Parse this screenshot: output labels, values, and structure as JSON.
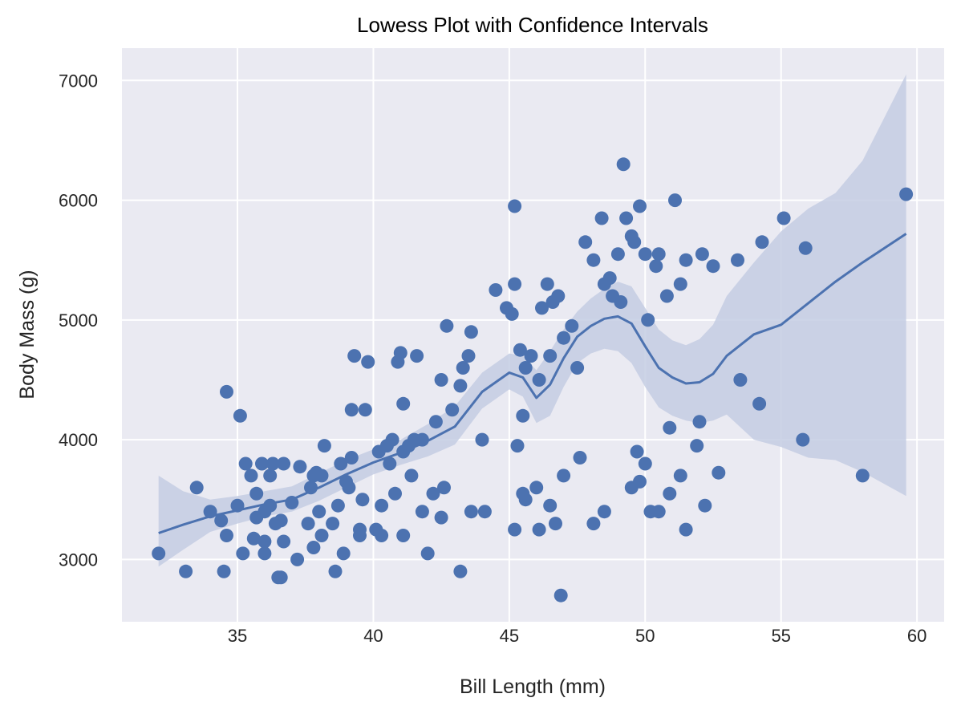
{
  "chart_data": {
    "type": "scatter",
    "title": "Lowess Plot with Confidence Intervals",
    "xlabel": "Bill Length (mm)",
    "ylabel": "Body Mass (g)",
    "xlim": [
      30.75,
      61.0
    ],
    "ylim": [
      2480,
      7270
    ],
    "xticks": [
      35,
      40,
      45,
      50,
      55,
      60
    ],
    "yticks": [
      3000,
      4000,
      5000,
      6000,
      7000
    ],
    "grid": true,
    "colors": {
      "background": "#eaeaf2",
      "grid": "#ffffff",
      "points": "#4c72b0",
      "line": "#4c72b0",
      "band": "#c4cde3"
    },
    "points": [
      [
        32.1,
        3050
      ],
      [
        33.1,
        2900
      ],
      [
        33.5,
        3600
      ],
      [
        34.0,
        3400
      ],
      [
        34.4,
        3325
      ],
      [
        34.5,
        2900
      ],
      [
        34.6,
        3200
      ],
      [
        34.6,
        4400
      ],
      [
        35.0,
        3450
      ],
      [
        35.1,
        4200
      ],
      [
        35.2,
        3050
      ],
      [
        35.3,
        3800
      ],
      [
        35.5,
        3700
      ],
      [
        35.6,
        3175
      ],
      [
        35.7,
        3350
      ],
      [
        35.7,
        3550
      ],
      [
        35.9,
        3800
      ],
      [
        36.0,
        3150
      ],
      [
        36.0,
        3050
      ],
      [
        36.0,
        3400
      ],
      [
        36.2,
        3700
      ],
      [
        36.2,
        3450
      ],
      [
        36.3,
        3800
      ],
      [
        36.4,
        3300
      ],
      [
        36.5,
        2850
      ],
      [
        36.6,
        2850
      ],
      [
        36.6,
        3325
      ],
      [
        36.7,
        3150
      ],
      [
        36.7,
        3800
      ],
      [
        37.0,
        3475
      ],
      [
        37.2,
        3000
      ],
      [
        37.3,
        3775
      ],
      [
        37.6,
        3300
      ],
      [
        37.7,
        3600
      ],
      [
        37.8,
        3700
      ],
      [
        37.9,
        3725
      ],
      [
        38.0,
        3400
      ],
      [
        38.1,
        3700
      ],
      [
        38.2,
        3950
      ],
      [
        38.5,
        3300
      ],
      [
        38.6,
        2900
      ],
      [
        38.7,
        3450
      ],
      [
        38.8,
        3800
      ],
      [
        39.0,
        3650
      ],
      [
        39.2,
        4250
      ],
      [
        39.3,
        4700
      ],
      [
        39.5,
        3250
      ],
      [
        39.6,
        3500
      ],
      [
        39.7,
        4250
      ],
      [
        39.8,
        4650
      ],
      [
        40.2,
        3900
      ],
      [
        40.3,
        3450
      ],
      [
        40.6,
        3800
      ],
      [
        40.7,
        4000
      ],
      [
        40.8,
        3550
      ],
      [
        40.9,
        4650
      ],
      [
        41.0,
        4725
      ],
      [
        41.1,
        3900
      ],
      [
        41.1,
        4300
      ],
      [
        41.3,
        3950
      ],
      [
        41.4,
        3700
      ],
      [
        41.5,
        4000
      ],
      [
        41.6,
        4700
      ],
      [
        41.8,
        3400
      ],
      [
        42.0,
        3050
      ],
      [
        42.2,
        3550
      ],
      [
        42.3,
        4150
      ],
      [
        42.5,
        3350
      ],
      [
        42.5,
        4500
      ],
      [
        42.7,
        4950
      ],
      [
        42.9,
        4250
      ],
      [
        43.2,
        2900
      ],
      [
        43.2,
        4450
      ],
      [
        43.3,
        4600
      ],
      [
        43.5,
        4700
      ],
      [
        43.6,
        4900
      ],
      [
        44.0,
        4000
      ],
      [
        44.5,
        5250
      ],
      [
        44.9,
        5100
      ],
      [
        45.1,
        5050
      ],
      [
        45.2,
        5950
      ],
      [
        45.2,
        5300
      ],
      [
        45.4,
        4750
      ],
      [
        45.5,
        4200
      ],
      [
        45.6,
        4600
      ],
      [
        45.8,
        4700
      ],
      [
        46.1,
        4500
      ],
      [
        46.2,
        5100
      ],
      [
        46.4,
        5300
      ],
      [
        46.5,
        4700
      ],
      [
        46.6,
        5150
      ],
      [
        46.8,
        5200
      ],
      [
        47.0,
        4850
      ],
      [
        47.3,
        4950
      ],
      [
        47.5,
        4600
      ],
      [
        47.8,
        5650
      ],
      [
        48.1,
        5500
      ],
      [
        48.4,
        5850
      ],
      [
        48.5,
        5300
      ],
      [
        48.7,
        5350
      ],
      [
        49.0,
        5550
      ],
      [
        49.1,
        5150
      ],
      [
        49.3,
        5850
      ],
      [
        49.5,
        5700
      ],
      [
        49.6,
        5650
      ],
      [
        49.8,
        5950
      ],
      [
        50.0,
        5550
      ],
      [
        50.1,
        5000
      ],
      [
        50.4,
        5450
      ],
      [
        50.5,
        5550
      ],
      [
        50.8,
        5200
      ],
      [
        51.1,
        6000
      ],
      [
        51.3,
        5300
      ],
      [
        51.5,
        5500
      ],
      [
        52.1,
        5550
      ],
      [
        52.5,
        5450
      ],
      [
        53.4,
        5500
      ],
      [
        54.3,
        5650
      ],
      [
        55.1,
        5850
      ],
      [
        55.9,
        5600
      ],
      [
        59.6,
        6050
      ],
      [
        49.2,
        6300
      ],
      [
        48.8,
        5200
      ],
      [
        46.9,
        2700
      ],
      [
        45.2,
        3250
      ],
      [
        45.6,
        3500
      ],
      [
        46.0,
        3600
      ],
      [
        46.5,
        3450
      ],
      [
        47.0,
        3700
      ],
      [
        47.6,
        3850
      ],
      [
        48.1,
        3300
      ],
      [
        48.5,
        3400
      ],
      [
        49.5,
        3600
      ],
      [
        49.8,
        3650
      ],
      [
        50.2,
        3400
      ],
      [
        50.5,
        3400
      ],
      [
        50.9,
        3550
      ],
      [
        51.3,
        3700
      ],
      [
        51.9,
        3950
      ],
      [
        52.2,
        3450
      ],
      [
        52.7,
        3725
      ],
      [
        53.5,
        4500
      ],
      [
        54.2,
        4300
      ],
      [
        55.8,
        4000
      ],
      [
        58.0,
        3700
      ],
      [
        46.1,
        3250
      ],
      [
        46.7,
        3300
      ],
      [
        45.5,
        3550
      ],
      [
        50.0,
        3800
      ],
      [
        51.5,
        3250
      ],
      [
        49.7,
        3900
      ],
      [
        50.9,
        4100
      ],
      [
        52.0,
        4150
      ],
      [
        45.3,
        3950
      ],
      [
        44.1,
        3400
      ],
      [
        43.6,
        3400
      ],
      [
        42.6,
        3600
      ],
      [
        40.3,
        3200
      ],
      [
        39.5,
        3200
      ],
      [
        37.8,
        3100
      ],
      [
        38.9,
        3050
      ],
      [
        39.1,
        3600
      ],
      [
        38.1,
        3200
      ],
      [
        40.1,
        3250
      ],
      [
        40.5,
        3950
      ],
      [
        39.2,
        3850
      ],
      [
        41.1,
        3200
      ],
      [
        41.8,
        4000
      ]
    ],
    "lowess": {
      "x": [
        32.1,
        33,
        34,
        35,
        36,
        37,
        38,
        39,
        40,
        41,
        42,
        43,
        44,
        45,
        45.5,
        46,
        46.5,
        47,
        47.5,
        48,
        48.5,
        49,
        49.5,
        50,
        50.5,
        51,
        51.5,
        52,
        52.5,
        53,
        54,
        55,
        56,
        57,
        58,
        59.6
      ],
      "y": [
        3220,
        3290,
        3360,
        3410,
        3460,
        3500,
        3600,
        3710,
        3810,
        3890,
        3990,
        4110,
        4400,
        4560,
        4520,
        4350,
        4460,
        4680,
        4860,
        4950,
        5010,
        5030,
        4970,
        4780,
        4600,
        4520,
        4470,
        4480,
        4550,
        4700,
        4880,
        4960,
        5140,
        5320,
        5480,
        5720
      ],
      "lower": [
        2940,
        3080,
        3230,
        3300,
        3360,
        3400,
        3490,
        3600,
        3710,
        3790,
        3860,
        3960,
        4260,
        4420,
        4360,
        4140,
        4200,
        4440,
        4640,
        4720,
        4760,
        4740,
        4640,
        4440,
        4270,
        4200,
        4160,
        4140,
        4160,
        4210,
        4000,
        3940,
        3850,
        3830,
        3730,
        3530
      ],
      "upper": [
        3700,
        3570,
        3500,
        3530,
        3570,
        3610,
        3720,
        3830,
        3920,
        4000,
        4130,
        4280,
        4560,
        4720,
        4700,
        4580,
        4740,
        4920,
        5070,
        5180,
        5260,
        5320,
        5280,
        5100,
        4920,
        4830,
        4790,
        4840,
        4960,
        5200,
        5480,
        5740,
        5930,
        6060,
        6330,
        7050
      ]
    }
  }
}
